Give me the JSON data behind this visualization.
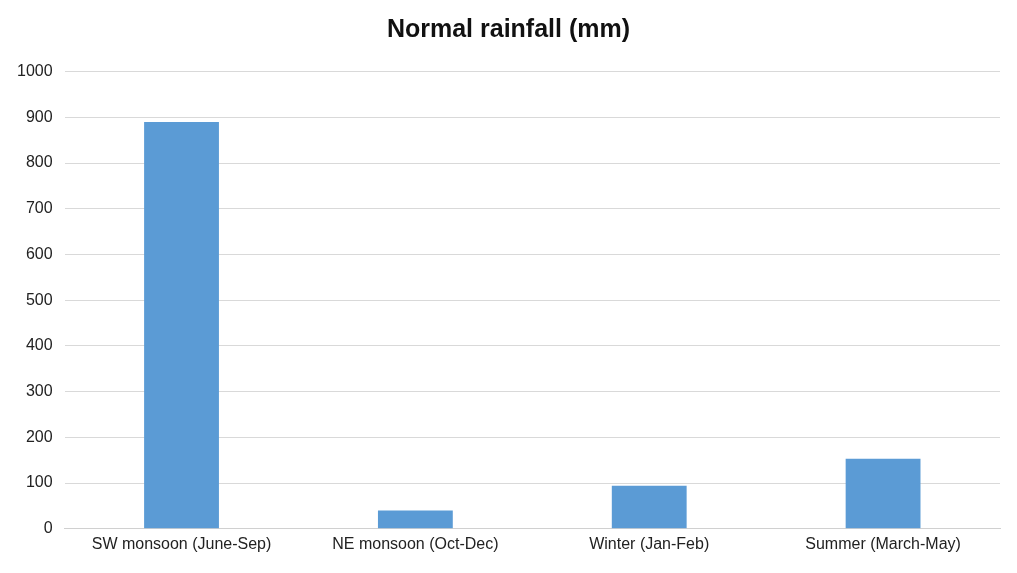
{
  "chart_data": {
    "type": "bar",
    "title": "Normal rainfall (mm)",
    "categories": [
      "SW monsoon (June-Sep)",
      "NE monsoon (Oct-Dec)",
      "Winter (Jan-Feb)",
      "Summer (March-May)"
    ],
    "values": [
      890,
      40,
      94,
      153
    ],
    "color": "#5b9bd5",
    "ylim": [
      0,
      1000
    ],
    "yticks": [
      0,
      100,
      200,
      300,
      400,
      500,
      600,
      700,
      800,
      900,
      1000
    ],
    "grid": "y"
  }
}
